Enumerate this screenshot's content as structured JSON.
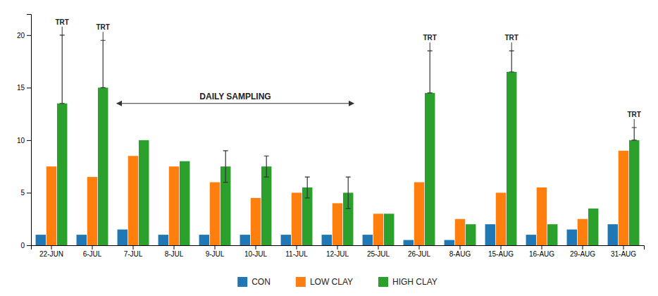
{
  "chart_data": {
    "type": "bar",
    "categories": [
      "22-JUN",
      "6-JUL",
      "7-JUL",
      "8-JUL",
      "9-JUL",
      "10-JUL",
      "11-JUL",
      "12-JUL",
      "25-JUL",
      "26-JUL",
      "8-AUG",
      "15-AUG",
      "16-AUG",
      "29-AUG",
      "31-AUG"
    ],
    "series": [
      {
        "name": "CON",
        "values": [
          1.0,
          1.0,
          1.5,
          1.0,
          1.0,
          1.0,
          1.0,
          1.0,
          1.0,
          0.5,
          0.5,
          2.0,
          1.0,
          1.5,
          2.0
        ]
      },
      {
        "name": "LOW CLAY",
        "values": [
          7.5,
          6.5,
          8.5,
          7.5,
          6.0,
          4.5,
          5.0,
          4.0,
          3.0,
          6.0,
          2.5,
          5.0,
          5.5,
          2.5,
          9.0
        ]
      },
      {
        "name": "HIGH CLAY",
        "values": [
          13.5,
          15.0,
          10.0,
          8.0,
          7.5,
          7.5,
          5.5,
          5.0,
          3.0,
          14.5,
          2.0,
          16.5,
          2.0,
          3.5,
          10.0
        ],
        "error_up": [
          6.5,
          4.5,
          0,
          0,
          1.5,
          1.0,
          1.0,
          1.5,
          0,
          4.0,
          0,
          2.0,
          0,
          0,
          1.2
        ],
        "error_down": [
          0,
          0,
          0,
          0,
          1.5,
          1.0,
          1.0,
          1.5,
          0,
          0,
          0,
          0,
          0,
          0,
          0
        ]
      }
    ],
    "annotations": [
      {
        "type": "label",
        "text": "TRT",
        "series": "HIGH CLAY",
        "show": [
          true,
          true,
          false,
          false,
          false,
          false,
          false,
          false,
          false,
          true,
          false,
          true,
          false,
          false,
          true
        ]
      },
      {
        "type": "arrow",
        "text": "DAILY SAMPLING",
        "from": "7-JUL",
        "to": "12-JUL",
        "y": 13.5
      }
    ],
    "ylim": [
      0,
      22
    ],
    "yticks": [
      0,
      5,
      10,
      15,
      20
    ],
    "legend": "bottom"
  }
}
